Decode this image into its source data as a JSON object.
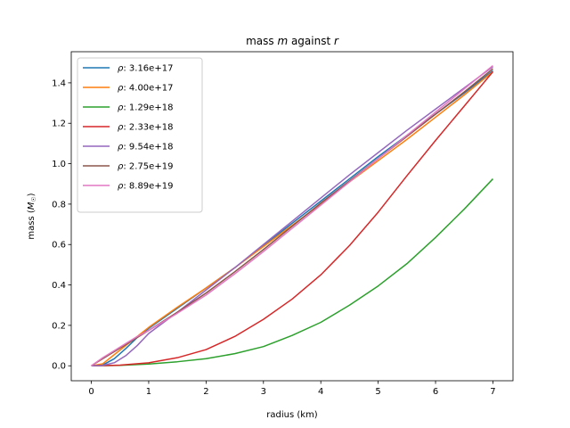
{
  "chart_data": {
    "type": "line",
    "title": "mass m against r",
    "title_parts": {
      "pre": "mass ",
      "var1": "m",
      "mid": " against ",
      "var2": "r"
    },
    "xlabel": "radius (km)",
    "ylabel": "mass (M☉)",
    "ylabel_parts": {
      "pre": "mass (",
      "sym": "M",
      "sub": "☉",
      "post": ")"
    },
    "xlim": [
      -0.35,
      7.35
    ],
    "ylim": [
      -0.074,
      1.554
    ],
    "xticks": [
      0,
      1,
      2,
      3,
      4,
      5,
      6,
      7
    ],
    "xtick_labels": [
      "0",
      "1",
      "2",
      "3",
      "4",
      "5",
      "6",
      "7"
    ],
    "yticks": [
      0.0,
      0.2,
      0.4,
      0.6,
      0.8,
      1.0,
      1.2,
      1.4
    ],
    "ytick_labels": [
      "0.0",
      "0.2",
      "0.4",
      "0.6",
      "0.8",
      "1.0",
      "1.2",
      "1.4"
    ],
    "grid": false,
    "legend_position": "top-left",
    "legend_symbol": "ρ",
    "series": [
      {
        "name": "ρ: 3.16e+17",
        "label_value": "3.16e+17",
        "color": "#1f77b4",
        "points": [
          [
            0,
            0
          ],
          [
            0.2,
            0.004
          ],
          [
            0.4,
            0.035
          ],
          [
            0.6,
            0.085
          ],
          [
            0.8,
            0.14
          ],
          [
            1.0,
            0.185
          ],
          [
            1.5,
            0.285
          ],
          [
            2.0,
            0.385
          ],
          [
            2.5,
            0.485
          ],
          [
            3.0,
            0.595
          ],
          [
            3.5,
            0.705
          ],
          [
            4.0,
            0.815
          ],
          [
            4.5,
            0.925
          ],
          [
            5.0,
            1.035
          ],
          [
            5.5,
            1.14
          ],
          [
            6.0,
            1.245
          ],
          [
            6.5,
            1.35
          ],
          [
            7.0,
            1.46
          ]
        ]
      },
      {
        "name": "ρ: 4.00e+17",
        "label_value": "4.00e+17",
        "color": "#ff7f0e",
        "points": [
          [
            0,
            0
          ],
          [
            0.2,
            0.01
          ],
          [
            0.4,
            0.055
          ],
          [
            0.6,
            0.1
          ],
          [
            0.8,
            0.145
          ],
          [
            1.0,
            0.19
          ],
          [
            1.5,
            0.29
          ],
          [
            2.0,
            0.385
          ],
          [
            2.5,
            0.485
          ],
          [
            3.0,
            0.59
          ],
          [
            3.5,
            0.695
          ],
          [
            4.0,
            0.8
          ],
          [
            4.5,
            0.91
          ],
          [
            5.0,
            1.015
          ],
          [
            5.5,
            1.12
          ],
          [
            6.0,
            1.23
          ],
          [
            6.5,
            1.34
          ],
          [
            7.0,
            1.455
          ]
        ]
      },
      {
        "name": "ρ: 1.29e+18",
        "label_value": "1.29e+18",
        "color": "#2ca02c",
        "points": [
          [
            0,
            0
          ],
          [
            0.5,
            0.002
          ],
          [
            1.0,
            0.009
          ],
          [
            1.5,
            0.02
          ],
          [
            2.0,
            0.035
          ],
          [
            2.5,
            0.06
          ],
          [
            3.0,
            0.095
          ],
          [
            3.5,
            0.15
          ],
          [
            4.0,
            0.215
          ],
          [
            4.5,
            0.3
          ],
          [
            5.0,
            0.395
          ],
          [
            5.5,
            0.505
          ],
          [
            6.0,
            0.635
          ],
          [
            6.5,
            0.775
          ],
          [
            7.0,
            0.925
          ]
        ]
      },
      {
        "name": "ρ: 2.33e+18",
        "label_value": "2.33e+18",
        "color": "#d62728",
        "points": [
          [
            0,
            0
          ],
          [
            0.5,
            0.003
          ],
          [
            1.0,
            0.015
          ],
          [
            1.5,
            0.04
          ],
          [
            2.0,
            0.08
          ],
          [
            2.5,
            0.145
          ],
          [
            3.0,
            0.23
          ],
          [
            3.5,
            0.33
          ],
          [
            4.0,
            0.45
          ],
          [
            4.5,
            0.595
          ],
          [
            5.0,
            0.76
          ],
          [
            5.5,
            0.94
          ],
          [
            6.0,
            1.115
          ],
          [
            6.5,
            1.285
          ],
          [
            7.0,
            1.455
          ]
        ]
      },
      {
        "name": "ρ: 9.54e+18",
        "label_value": "9.54e+18",
        "color": "#9467bd",
        "points": [
          [
            0,
            0
          ],
          [
            0.2,
            0.002
          ],
          [
            0.4,
            0.015
          ],
          [
            0.6,
            0.05
          ],
          [
            0.8,
            0.1
          ],
          [
            1.0,
            0.16
          ],
          [
            1.5,
            0.265
          ],
          [
            2.0,
            0.375
          ],
          [
            2.5,
            0.485
          ],
          [
            3.0,
            0.6
          ],
          [
            3.5,
            0.715
          ],
          [
            4.0,
            0.83
          ],
          [
            4.5,
            0.945
          ],
          [
            5.0,
            1.055
          ],
          [
            5.5,
            1.165
          ],
          [
            6.0,
            1.27
          ],
          [
            6.5,
            1.375
          ],
          [
            7.0,
            1.48
          ]
        ]
      },
      {
        "name": "ρ: 2.75e+19",
        "label_value": "2.75e+19",
        "color": "#8c564b",
        "points": [
          [
            0,
            0
          ],
          [
            0.2,
            0.035
          ],
          [
            0.4,
            0.07
          ],
          [
            0.6,
            0.105
          ],
          [
            0.8,
            0.14
          ],
          [
            1.0,
            0.175
          ],
          [
            1.5,
            0.265
          ],
          [
            2.0,
            0.36
          ],
          [
            2.5,
            0.465
          ],
          [
            3.0,
            0.575
          ],
          [
            3.5,
            0.69
          ],
          [
            4.0,
            0.805
          ],
          [
            4.5,
            0.915
          ],
          [
            5.0,
            1.025
          ],
          [
            5.5,
            1.135
          ],
          [
            6.0,
            1.245
          ],
          [
            6.5,
            1.355
          ],
          [
            7.0,
            1.47
          ]
        ]
      },
      {
        "name": "ρ: 8.89e+19",
        "label_value": "8.89e+19",
        "color": "#e377c2",
        "points": [
          [
            0,
            0
          ],
          [
            0.2,
            0.04
          ],
          [
            0.4,
            0.075
          ],
          [
            0.6,
            0.11
          ],
          [
            0.8,
            0.145
          ],
          [
            1.0,
            0.175
          ],
          [
            1.5,
            0.26
          ],
          [
            2.0,
            0.35
          ],
          [
            2.5,
            0.455
          ],
          [
            3.0,
            0.565
          ],
          [
            3.5,
            0.68
          ],
          [
            4.0,
            0.795
          ],
          [
            4.5,
            0.91
          ],
          [
            5.0,
            1.025
          ],
          [
            5.5,
            1.14
          ],
          [
            6.0,
            1.255
          ],
          [
            6.5,
            1.37
          ],
          [
            7.0,
            1.485
          ]
        ]
      }
    ]
  }
}
